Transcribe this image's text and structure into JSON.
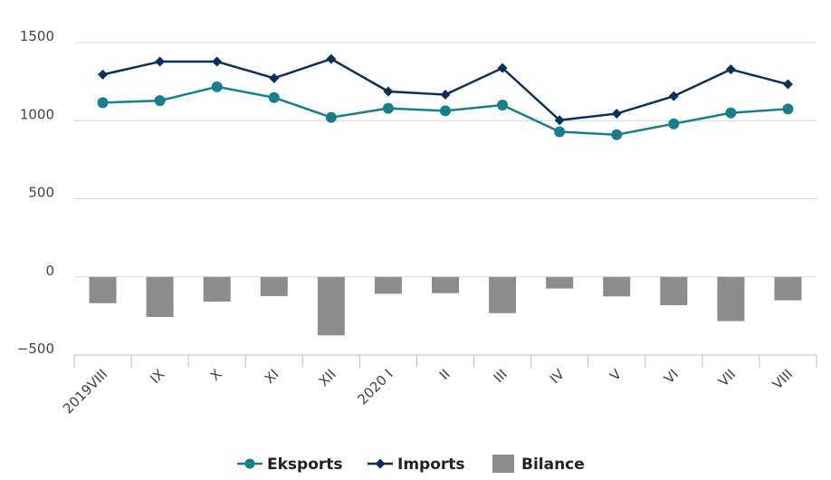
{
  "chart_data": {
    "type": "line+bar",
    "categories": [
      "2019VIII",
      "IX",
      "X",
      "XI",
      "XII",
      "2020 I",
      "II",
      "III",
      "IV",
      "V",
      "VI",
      "VII",
      "VIII"
    ],
    "ylim": [
      -500,
      1500
    ],
    "yticks": [
      -500,
      0,
      500,
      1000,
      1500
    ],
    "ytick_labels": [
      "−500",
      "0",
      "500",
      "1000",
      "1500"
    ],
    "grid": true,
    "legend_position": "bottom",
    "series": [
      {
        "name": "Eksports",
        "type": "line",
        "marker": "circle",
        "color": "#177f8c",
        "values": [
          1115,
          1128,
          1217,
          1148,
          1021,
          1079,
          1063,
          1100,
          929,
          910,
          980,
          1050,
          1075
        ]
      },
      {
        "name": "Imports",
        "type": "line",
        "marker": "diamond",
        "color": "#0d2f5e",
        "values": [
          1295,
          1378,
          1378,
          1272,
          1395,
          1187,
          1167,
          1337,
          1003,
          1045,
          1157,
          1328,
          1233
        ]
      },
      {
        "name": "Bilance",
        "type": "bar",
        "color": "#8c8c8c",
        "values": [
          -168,
          -256,
          -158,
          -123,
          -374,
          -108,
          -104,
          -232,
          -74,
          -125,
          -181,
          -283,
          -150
        ]
      }
    ]
  }
}
